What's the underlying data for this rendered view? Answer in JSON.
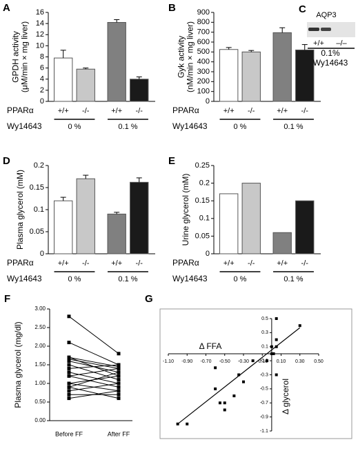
{
  "chart_data": [
    {
      "type": "bar",
      "panel": "A",
      "ylabel": [
        "GPDH activity",
        "(μM/min × mg liver)"
      ],
      "categories": [
        "+/+",
        "-/-",
        "+/+",
        "-/-"
      ],
      "values": [
        7.8,
        5.8,
        14.2,
        4.0
      ],
      "errors": [
        1.4,
        0.2,
        0.5,
        0.4
      ],
      "colors": [
        "#ffffff",
        "#c8c8c8",
        "#808080",
        "#1a1a1a"
      ],
      "row_labels": [
        "PPARα",
        "Wy14643"
      ],
      "groups": [
        "0 %",
        "0.1 %"
      ],
      "ylim": [
        0,
        16
      ],
      "yticks": [
        0,
        2,
        4,
        6,
        8,
        10,
        12,
        14,
        16
      ]
    },
    {
      "type": "bar",
      "panel": "B",
      "ylabel": [
        "Gyk activity",
        "(nM/min × mg liver)"
      ],
      "categories": [
        "+/+",
        "-/-",
        "+/+",
        "-/-"
      ],
      "values": [
        525,
        500,
        695,
        520
      ],
      "errors": [
        20,
        15,
        50,
        55
      ],
      "colors": [
        "#ffffff",
        "#c8c8c8",
        "#808080",
        "#1a1a1a"
      ],
      "row_labels": [
        "PPARα",
        "Wy14643"
      ],
      "groups": [
        "0 %",
        "0.1 %"
      ],
      "ylim": [
        0,
        900
      ],
      "yticks": [
        0,
        100,
        200,
        300,
        400,
        500,
        600,
        700,
        800,
        900
      ]
    },
    {
      "type": "blot",
      "panel": "C",
      "title": "AQP3",
      "categories": [
        "+/+",
        "–/–"
      ],
      "group": "0.1%",
      "treatment": "Wy14643"
    },
    {
      "type": "bar",
      "panel": "D",
      "ylabel": [
        "Plasma glycerol (mM)"
      ],
      "categories": [
        "+/+",
        "-/-",
        "+/+",
        "-/-"
      ],
      "values": [
        0.12,
        0.17,
        0.09,
        0.162
      ],
      "errors": [
        0.008,
        0.008,
        0.004,
        0.01
      ],
      "colors": [
        "#ffffff",
        "#c8c8c8",
        "#808080",
        "#1a1a1a"
      ],
      "row_labels": [
        "PPARα",
        "Wy14643"
      ],
      "groups": [
        "0 %",
        "0.1 %"
      ],
      "ylim": [
        0,
        0.2
      ],
      "yticks": [
        0,
        0.05,
        0.1,
        0.15,
        0.2
      ]
    },
    {
      "type": "bar",
      "panel": "E",
      "ylabel": [
        "Urine glycerol (mM)"
      ],
      "categories": [
        "+/+",
        "-/-",
        "+/+",
        "-/-"
      ],
      "values": [
        0.17,
        0.2,
        0.06,
        0.15
      ],
      "colors": [
        "#ffffff",
        "#c8c8c8",
        "#808080",
        "#1a1a1a"
      ],
      "row_labels": [
        "PPARα",
        "Wy14643"
      ],
      "groups": [
        "0 %",
        "0.1 %"
      ],
      "ylim": [
        0,
        0.25
      ],
      "yticks": [
        0,
        0.05,
        0.1,
        0.15,
        0.2,
        0.25
      ]
    },
    {
      "type": "paired",
      "panel": "F",
      "ylabel": [
        "Plasma glycerol (mg/dl)"
      ],
      "categories": [
        "Before FF",
        "After FF"
      ],
      "lines": [
        {
          "values": [
            2.8,
            1.8
          ]
        },
        {
          "values": [
            2.1,
            1.5
          ]
        },
        {
          "values": [
            1.7,
            1.45
          ]
        },
        {
          "values": [
            1.7,
            1.2
          ]
        },
        {
          "values": [
            1.65,
            1.4
          ]
        },
        {
          "values": [
            1.6,
            1.3
          ]
        },
        {
          "values": [
            1.5,
            1.1
          ]
        },
        {
          "values": [
            1.4,
            1.5
          ]
        },
        {
          "values": [
            1.3,
            1.0
          ]
        },
        {
          "values": [
            1.2,
            1.4
          ]
        },
        {
          "values": [
            1.2,
            0.9
          ]
        },
        {
          "values": [
            1.0,
            1.2
          ]
        },
        {
          "values": [
            1.0,
            0.8
          ]
        },
        {
          "values": [
            0.9,
            1.3
          ]
        },
        {
          "values": [
            0.9,
            0.6
          ]
        },
        {
          "values": [
            0.8,
            1.0
          ]
        },
        {
          "values": [
            0.7,
            0.7
          ]
        },
        {
          "values": [
            0.6,
            0.8
          ]
        }
      ],
      "ylim": [
        0,
        3
      ],
      "yticks": [
        {
          "value": 0,
          "label": "0.00"
        },
        {
          "value": 0.5,
          "label": "0.50"
        },
        {
          "value": 1,
          "label": "1.00"
        },
        {
          "value": 1.5,
          "label": "1.50"
        },
        {
          "value": 2,
          "label": "2.00"
        },
        {
          "value": 2.5,
          "label": "2.50"
        },
        {
          "value": 3,
          "label": "3.00"
        }
      ]
    },
    {
      "type": "scatter",
      "panel": "G",
      "xlabel": "Δ FFA",
      "ylabel": "Δ glycerol",
      "x": [
        -1.0,
        -0.9,
        -0.6,
        -0.5,
        -0.55,
        -0.5,
        -0.4,
        -0.35,
        -0.3,
        -0.6,
        -0.2,
        -0.05,
        0.0,
        0.05,
        0.05,
        0.05,
        0.3,
        0.05,
        0.0,
        0.02
      ],
      "y": [
        -1.0,
        -1.0,
        -0.5,
        -0.8,
        -0.7,
        -0.7,
        -0.6,
        -0.3,
        -0.4,
        -0.2,
        -0.1,
        -0.1,
        0.0,
        0.5,
        0.2,
        0.1,
        0.4,
        -0.3,
        0.1,
        0.0
      ],
      "fit_line": {
        "x": [
          -1.0,
          0.3
        ],
        "y": [
          -1.0,
          0.37
        ]
      },
      "xlim": [
        -1.1,
        0.5
      ],
      "ylim": [
        -1.1,
        0.5
      ],
      "xticks": [
        {
          "value": -1.1,
          "label": "-1.10"
        },
        {
          "value": -0.9,
          "label": "-0.90"
        },
        {
          "value": -0.7,
          "label": "-0.70"
        },
        {
          "value": -0.5,
          "label": "-0.50"
        },
        {
          "value": -0.3,
          "label": "-0.30"
        },
        {
          "value": -0.1,
          "label": "-0.10"
        },
        {
          "value": 0.1,
          "label": "0.10"
        },
        {
          "value": 0.3,
          "label": "0.30"
        },
        {
          "value": 0.5,
          "label": "0.50"
        }
      ],
      "yticks": [
        -1.1,
        -0.9,
        -0.7,
        -0.5,
        -0.3,
        -0.1,
        0.1,
        0.3,
        0.5
      ]
    }
  ]
}
